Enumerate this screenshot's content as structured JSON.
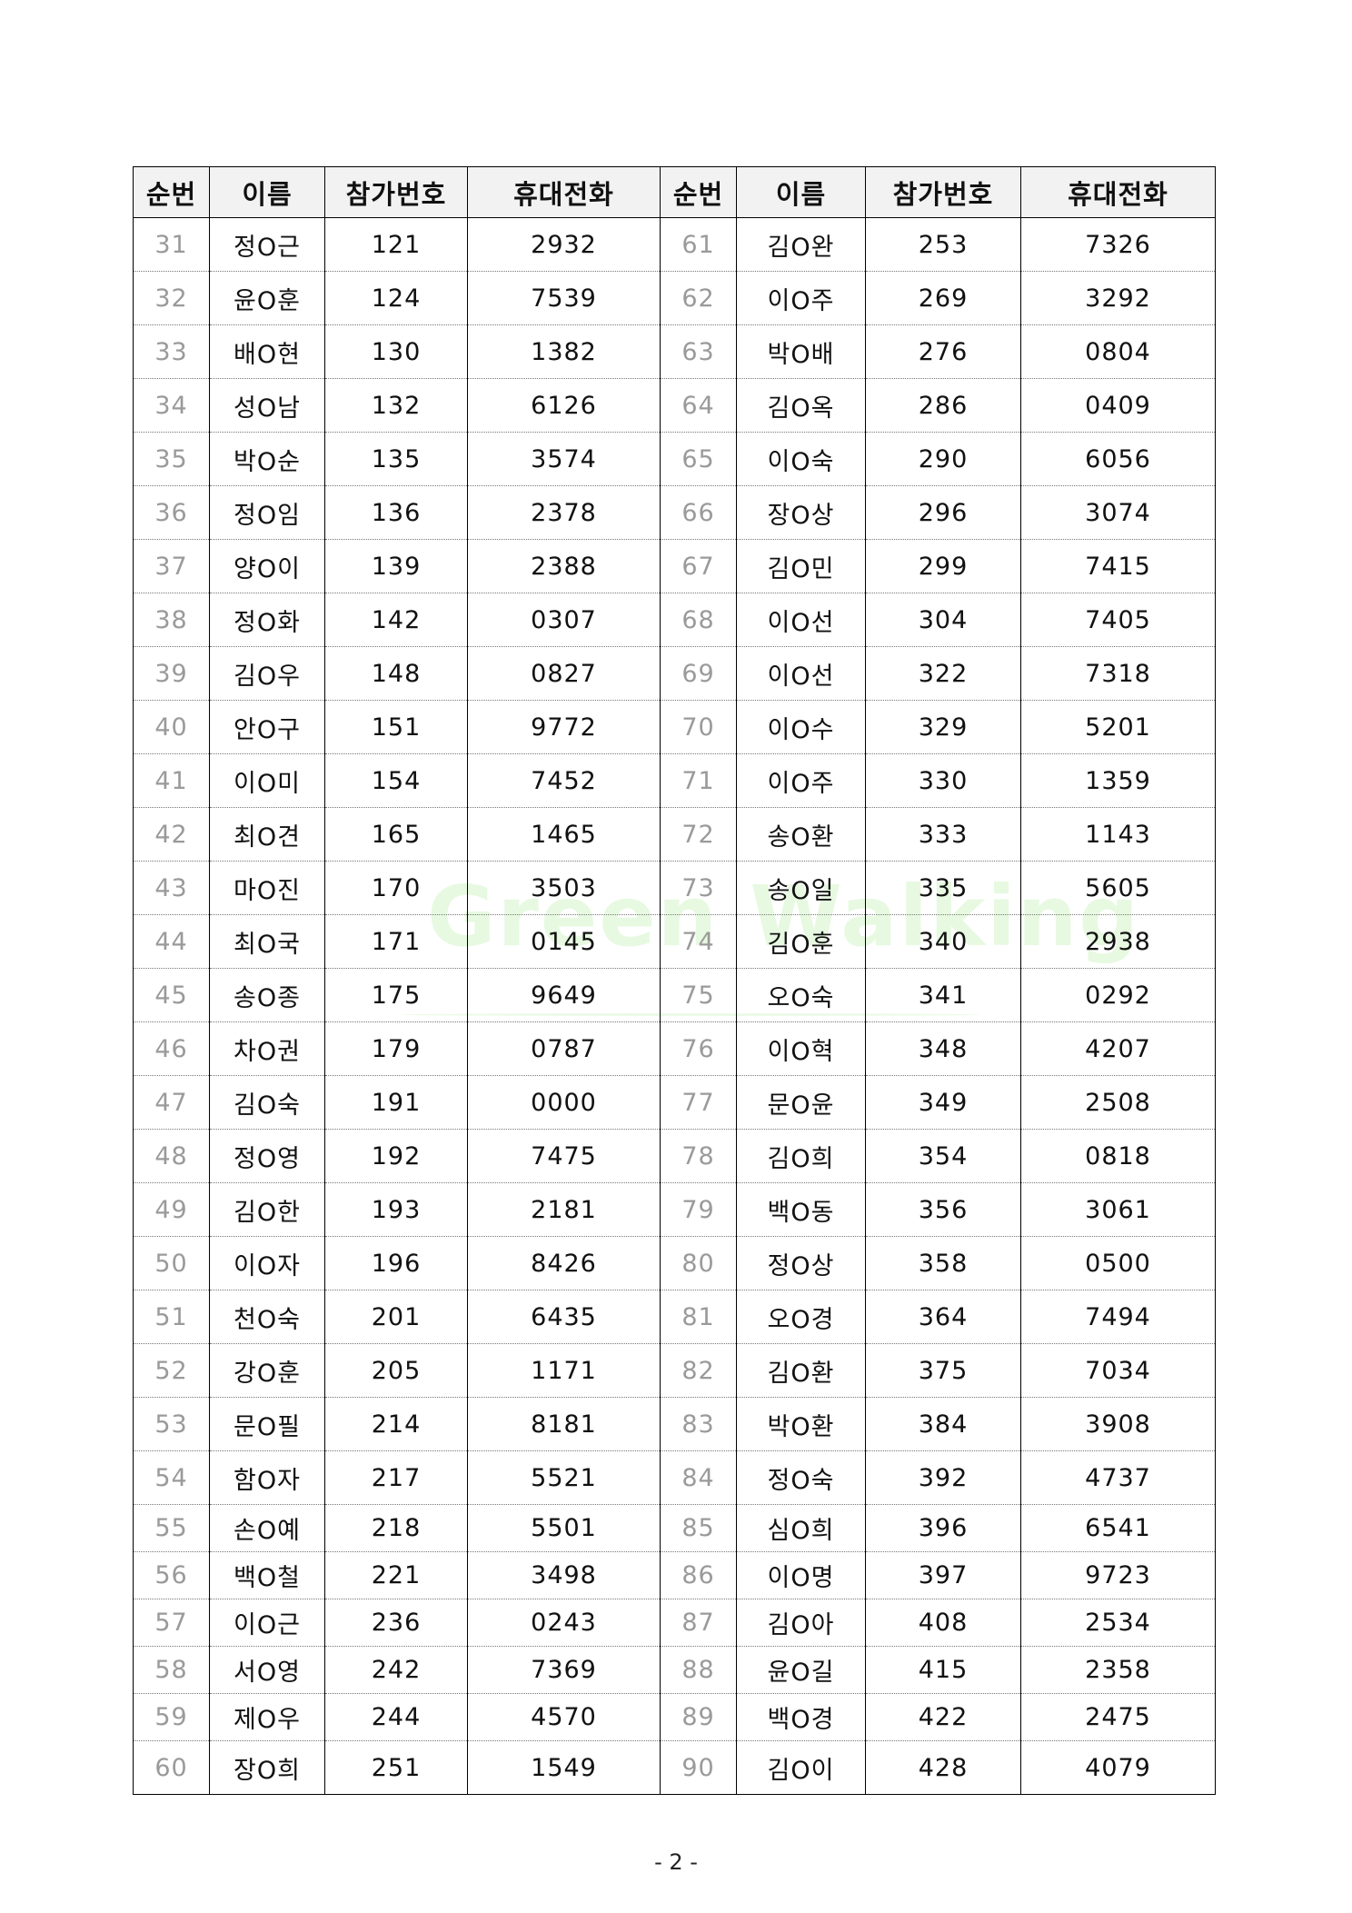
{
  "headers": [
    "순번",
    "이름",
    "참가번호",
    "휴대전화",
    "순번",
    "이름",
    "참가번호",
    "휴대전화"
  ],
  "rows": [
    [
      "31",
      "정O근",
      "121",
      "2932",
      "61",
      "김O완",
      "253",
      "7326"
    ],
    [
      "32",
      "윤O훈",
      "124",
      "7539",
      "62",
      "이O주",
      "269",
      "3292"
    ],
    [
      "33",
      "배O현",
      "130",
      "1382",
      "63",
      "박O배",
      "276",
      "0804"
    ],
    [
      "34",
      "성O남",
      "132",
      "6126",
      "64",
      "김O옥",
      "286",
      "0409"
    ],
    [
      "35",
      "박O순",
      "135",
      "3574",
      "65",
      "이O숙",
      "290",
      "6056"
    ],
    [
      "36",
      "정O임",
      "136",
      "2378",
      "66",
      "장O상",
      "296",
      "3074"
    ],
    [
      "37",
      "양O이",
      "139",
      "2388",
      "67",
      "김O민",
      "299",
      "7415"
    ],
    [
      "38",
      "정O화",
      "142",
      "0307",
      "68",
      "이O선",
      "304",
      "7405"
    ],
    [
      "39",
      "김O우",
      "148",
      "0827",
      "69",
      "이O선",
      "322",
      "7318"
    ],
    [
      "40",
      "안O구",
      "151",
      "9772",
      "70",
      "이O수",
      "329",
      "5201"
    ],
    [
      "41",
      "이O미",
      "154",
      "7452",
      "71",
      "이O주",
      "330",
      "1359"
    ],
    [
      "42",
      "최O견",
      "165",
      "1465",
      "72",
      "송O환",
      "333",
      "1143"
    ],
    [
      "43",
      "마O진",
      "170",
      "3503",
      "73",
      "송O일",
      "335",
      "5605"
    ],
    [
      "44",
      "최O국",
      "171",
      "0145",
      "74",
      "김O훈",
      "340",
      "2938"
    ],
    [
      "45",
      "송O종",
      "175",
      "9649",
      "75",
      "오O숙",
      "341",
      "0292"
    ],
    [
      "46",
      "차O권",
      "179",
      "0787",
      "76",
      "이O혁",
      "348",
      "4207"
    ],
    [
      "47",
      "김O숙",
      "191",
      "0000",
      "77",
      "문O윤",
      "349",
      "2508"
    ],
    [
      "48",
      "정O영",
      "192",
      "7475",
      "78",
      "김O희",
      "354",
      "0818"
    ],
    [
      "49",
      "김O한",
      "193",
      "2181",
      "79",
      "백O동",
      "356",
      "3061"
    ],
    [
      "50",
      "이O자",
      "196",
      "8426",
      "80",
      "정O상",
      "358",
      "0500"
    ],
    [
      "51",
      "천O숙",
      "201",
      "6435",
      "81",
      "오O경",
      "364",
      "7494"
    ],
    [
      "52",
      "강O훈",
      "205",
      "1171",
      "82",
      "김O환",
      "375",
      "7034"
    ],
    [
      "53",
      "문O필",
      "214",
      "8181",
      "83",
      "박O환",
      "384",
      "3908"
    ],
    [
      "54",
      "함O자",
      "217",
      "5521",
      "84",
      "정O숙",
      "392",
      "4737"
    ],
    [
      "55",
      "손O예",
      "218",
      "5501",
      "85",
      "심O희",
      "396",
      "6541"
    ],
    [
      "56",
      "백O철",
      "221",
      "3498",
      "86",
      "이O명",
      "397",
      "9723"
    ],
    [
      "57",
      "이O근",
      "236",
      "0243",
      "87",
      "김O아",
      "408",
      "2534"
    ],
    [
      "58",
      "서O영",
      "242",
      "7369",
      "88",
      "윤O길",
      "415",
      "2358"
    ],
    [
      "59",
      "제O우",
      "244",
      "4570",
      "89",
      "백O경",
      "422",
      "2475"
    ],
    [
      "60",
      "장O희",
      "251",
      "1549",
      "90",
      "김O이",
      "428",
      "4079"
    ]
  ],
  "watermark": "Green Walking",
  "page_number": "- 2 -",
  "colors": {
    "sequence_number": "#9a9a9a",
    "watermark": "#78dc5a"
  }
}
